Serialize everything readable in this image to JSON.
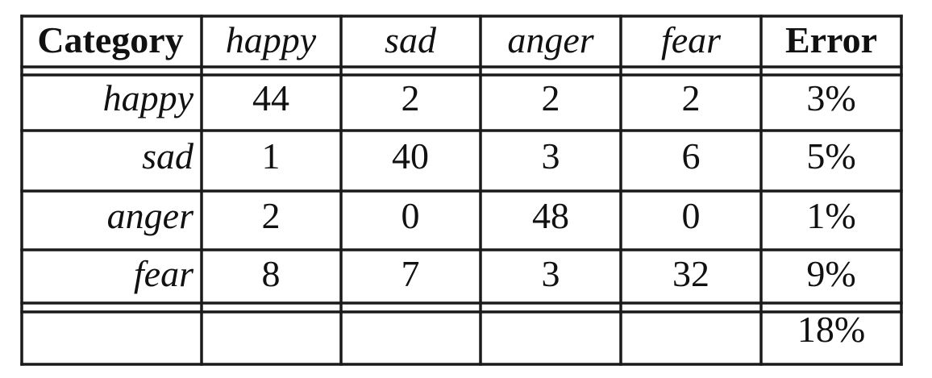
{
  "table": {
    "header": {
      "category": "Category",
      "columns": [
        "happy",
        "sad",
        "anger",
        "fear"
      ],
      "error": "Error"
    },
    "rows": [
      {
        "label": "happy",
        "values": [
          "44",
          "2",
          "2",
          "2"
        ],
        "error": "3%"
      },
      {
        "label": "sad",
        "values": [
          "1",
          "40",
          "3",
          "6"
        ],
        "error": "5%"
      },
      {
        "label": "anger",
        "values": [
          "2",
          "0",
          "48",
          "0"
        ],
        "error": "1%"
      },
      {
        "label": "fear",
        "values": [
          "8",
          "7",
          "3",
          "32"
        ],
        "error": "9%"
      }
    ],
    "total": {
      "error": "18%"
    }
  }
}
